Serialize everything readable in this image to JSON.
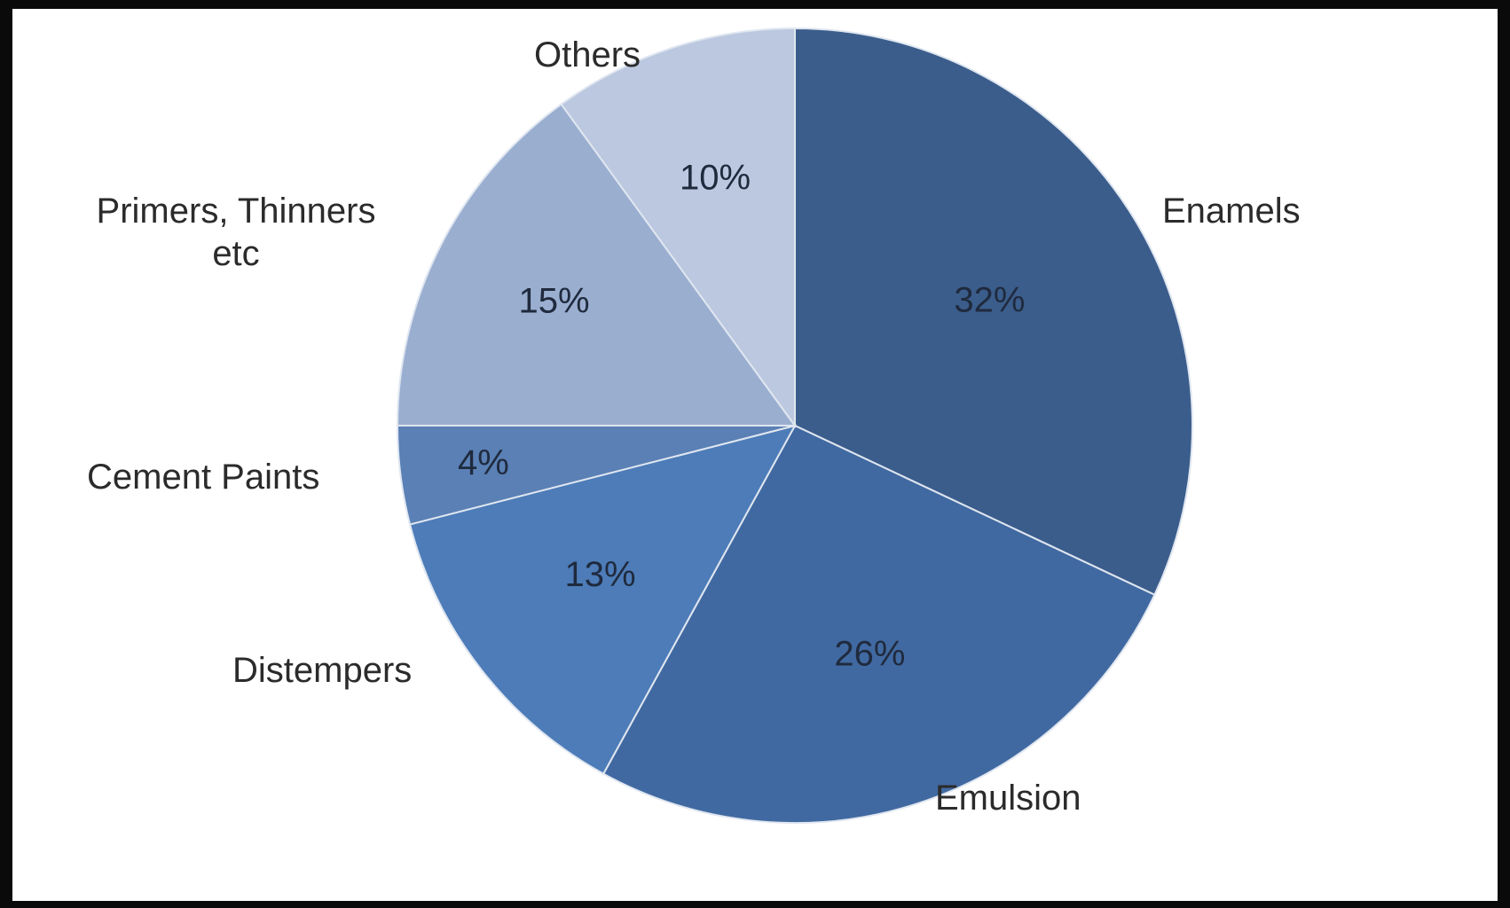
{
  "chart_data": {
    "type": "pie",
    "title": "",
    "slices": [
      {
        "label": "Enamels",
        "value": 32,
        "value_label": "32%",
        "color": "#3b5d8c"
      },
      {
        "label": "Emulsion",
        "value": 26,
        "value_label": "26%",
        "color": "#4169a1"
      },
      {
        "label": "Distempers",
        "value": 13,
        "value_label": "13%",
        "color": "#4d7cb8"
      },
      {
        "label": "Cement Paints",
        "value": 4,
        "value_label": "4%",
        "color": "#5a80b5"
      },
      {
        "label": "Primers, Thinners etc",
        "label_lines": [
          "Primers, Thinners",
          "etc"
        ],
        "value": 15,
        "value_label": "15%",
        "color": "#9aaed0"
      },
      {
        "label": "Others",
        "value": 10,
        "value_label": "10%",
        "color": "#bcc8e0"
      }
    ],
    "legend": "labels-outside",
    "start_angle": "12 o'clock",
    "direction": "clockwise"
  }
}
